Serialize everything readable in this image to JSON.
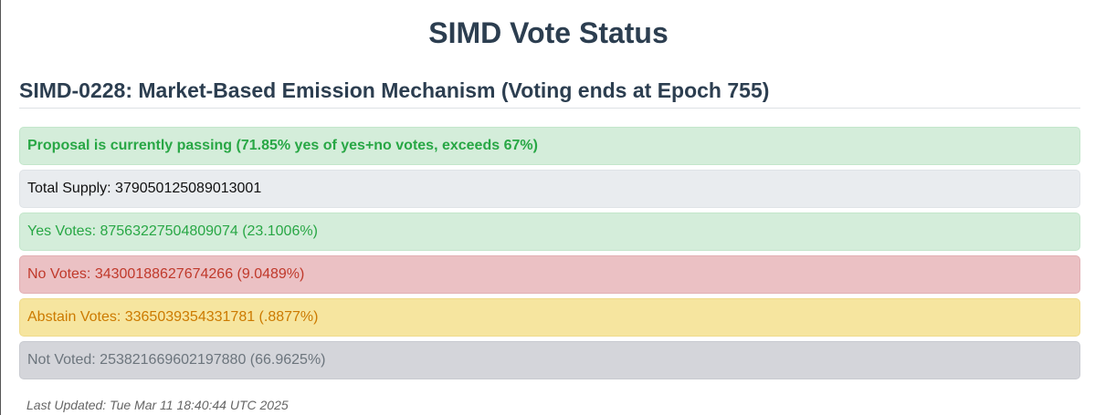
{
  "page": {
    "title": "SIMD Vote Status"
  },
  "proposal": {
    "heading": "SIMD-0228: Market-Based Emission Mechanism (Voting ends at Epoch 755)",
    "status_message": "Proposal is currently passing (71.85% yes of yes+no votes, exceeds 67%)",
    "total_supply": "Total Supply: 379050125089013001",
    "yes_votes": "Yes Votes: 87563227504809074 (23.1006%)",
    "no_votes": "No Votes: 34300188627674266 (9.0489%)",
    "abstain_votes": "Abstain Votes: 3365039354331781 (.8877%)",
    "not_voted": "Not Voted: 253821669602197880 (66.9625%)"
  },
  "footer": {
    "last_updated": "Last Updated: Tue Mar 11 18:40:44 UTC 2025"
  },
  "colors": {
    "heading": "#2c3e50",
    "passing_bg": "#d4edda",
    "passing_text": "#28a745",
    "total_bg": "#e9ecef",
    "no_bg": "#ebc1c4",
    "no_text": "#c0392b",
    "abstain_bg": "#f6e59f",
    "abstain_text": "#cc7a00",
    "not_voted_bg": "#d4d5da",
    "not_voted_text": "#6c757d"
  }
}
